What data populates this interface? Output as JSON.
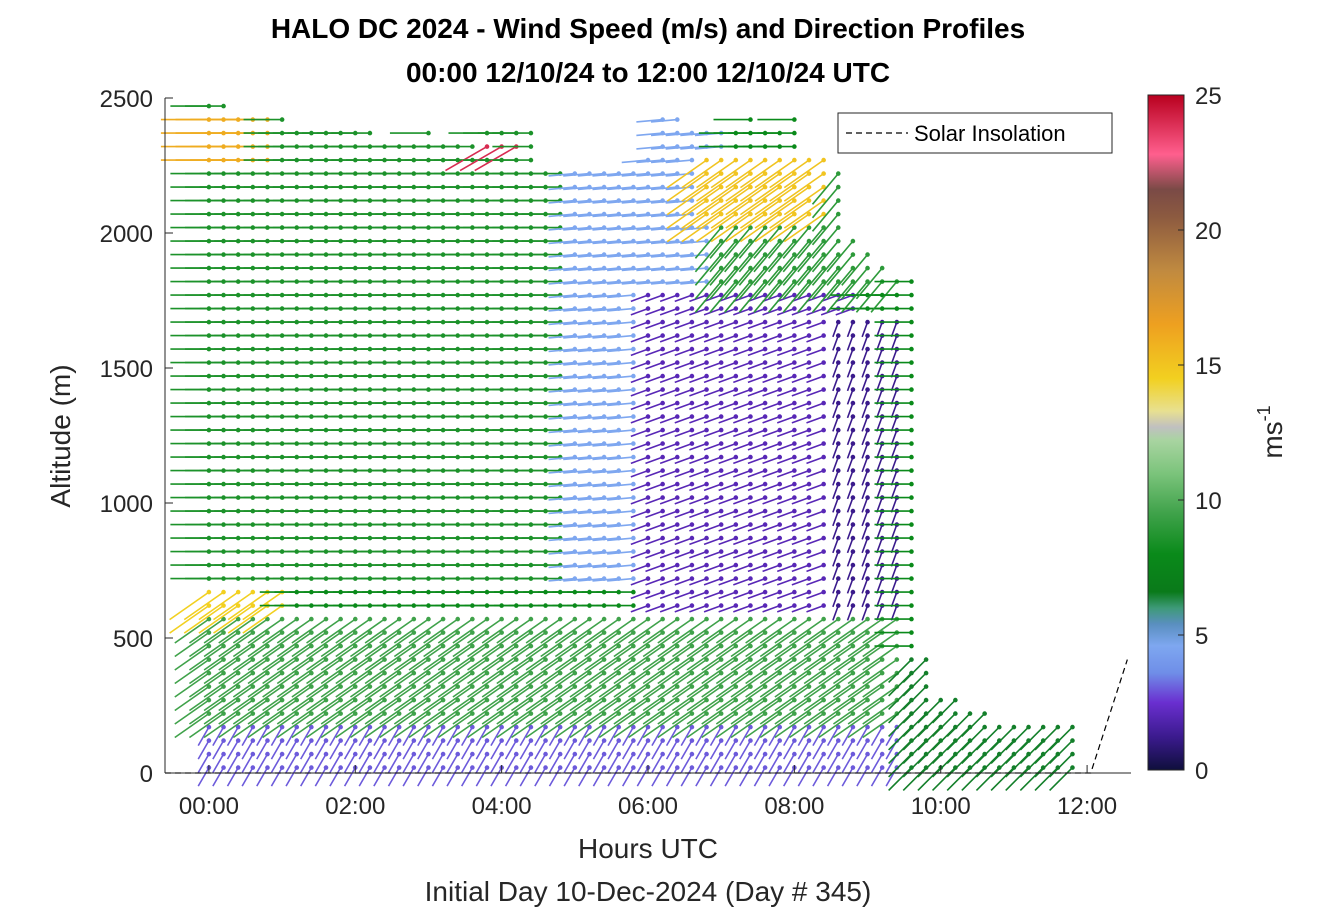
{
  "chart_data": {
    "type": "wind-barb profile (quiver)",
    "title": "HALO DC 2024 - Wind Speed (m/s) and Direction Profiles",
    "subtitle": "00:00 12/10/24 to 12:00 12/10/24  UTC",
    "xlabel": "Hours UTC",
    "xlabel2": "Initial Day 10-Dec-2024 (Day # 345)",
    "ylabel": "Altitude (m)",
    "colorbar_label": "ms",
    "colorbar_label_exp": "-1",
    "x_ticks": [
      "00:00",
      "02:00",
      "04:00",
      "06:00",
      "08:00",
      "10:00",
      "12:00"
    ],
    "x_tick_hours": [
      0,
      2,
      4,
      6,
      8,
      10,
      12
    ],
    "xlim_hours": [
      -0.6,
      12.6
    ],
    "y_ticks": [
      "0",
      "500",
      "1000",
      "1500",
      "2000",
      "2500"
    ],
    "y_tick_values": [
      0,
      500,
      1000,
      1500,
      2000,
      2500
    ],
    "ylim": [
      0,
      2500
    ],
    "colorbar_ticks": [
      "0",
      "5",
      "10",
      "15",
      "20",
      "25"
    ],
    "colorbar_tick_values": [
      0,
      5,
      10,
      15,
      20,
      25
    ],
    "colorbar_range": [
      0,
      25
    ],
    "colormap": [
      [
        0,
        "#0f0f3c"
      ],
      [
        1.2,
        "#3a1a8c"
      ],
      [
        2.5,
        "#6a2fd0"
      ],
      [
        3.6,
        "#6f8ee8"
      ],
      [
        4.6,
        "#7ea7f0"
      ],
      [
        5.4,
        "#5a8fc0"
      ],
      [
        6.0,
        "#3e9a78"
      ],
      [
        6.6,
        "#0a7a1a"
      ],
      [
        8.0,
        "#0a8a1a"
      ],
      [
        9.5,
        "#3fa24a"
      ],
      [
        11.0,
        "#7cc47c"
      ],
      [
        12.2,
        "#a8d4a0"
      ],
      [
        12.7,
        "#c0c0c0"
      ],
      [
        13.3,
        "#e8e090"
      ],
      [
        14.5,
        "#f2d020"
      ],
      [
        16.5,
        "#eea020"
      ],
      [
        18.5,
        "#c08a40"
      ],
      [
        20.5,
        "#8c5a40"
      ],
      [
        21.5,
        "#7a4a46"
      ],
      [
        22.8,
        "#ff5f8e"
      ],
      [
        25,
        "#b8001e"
      ]
    ],
    "legend": {
      "label": "Solar Insolation",
      "position": "top-right",
      "line_style": "dashed"
    },
    "solar_insolation": {
      "hours": [
        -0.6,
        12.05,
        12.55
      ],
      "altitude_m": [
        0,
        0,
        420
      ]
    },
    "profile_hours": [
      0.0,
      0.2,
      0.4,
      0.6,
      0.8,
      1.0,
      1.2,
      1.4,
      1.6,
      1.8,
      2.0,
      2.2,
      2.4,
      2.6,
      2.8,
      3.0,
      3.2,
      3.4,
      3.6,
      3.8,
      4.0,
      4.2,
      4.4,
      4.6,
      4.8,
      5.0,
      5.2,
      5.4,
      5.6,
      5.8,
      6.0,
      6.2,
      6.4,
      6.6,
      6.8,
      7.0,
      7.2,
      7.4,
      7.6,
      7.8,
      8.0,
      8.2,
      8.4,
      8.6,
      8.8,
      9.0,
      9.2,
      9.4,
      9.6,
      9.8,
      10.0,
      10.2,
      10.4,
      10.6,
      10.8,
      11.0,
      11.2,
      11.4,
      11.6,
      11.8
    ],
    "profile_top_m": [
      2500,
      2500,
      2450,
      2450,
      2450,
      2420,
      2400,
      2380,
      2400,
      2380,
      2400,
      2370,
      2360,
      2360,
      2360,
      2380,
      2360,
      2360,
      2360,
      2370,
      2380,
      2400,
      2400,
      2230,
      2230,
      2230,
      2230,
      2230,
      2230,
      2240,
      2270,
      2450,
      2420,
      2400,
      2380,
      2390,
      2400,
      2440,
      2400,
      2410,
      2420,
      2300,
      2280,
      2260,
      2000,
      1950,
      1900,
      1850,
      1830,
      420,
      290,
      270,
      250,
      230,
      200,
      190,
      200,
      200,
      200,
      180
    ],
    "profile_bottom_m": 20,
    "level_spacing_m": 50,
    "wind_regimes": [
      {
        "hours": [
          0.0,
          5.0
        ],
        "alt_m": [
          700,
          2500
        ],
        "speed": 8.5,
        "dir_deg": 270
      },
      {
        "hours": [
          5.0,
          7.0
        ],
        "alt_m": [
          700,
          2500
        ],
        "speed": 4.6,
        "dir_deg": 265
      },
      {
        "hours": [
          6.0,
          8.8
        ],
        "alt_m": [
          250,
          1800
        ],
        "speed": 2.0,
        "dir_deg": 250
      },
      {
        "hours": [
          7.0,
          9.4
        ],
        "alt_m": [
          1800,
          2300
        ],
        "speed": 9.0,
        "dir_deg": 220
      },
      {
        "hours": [
          8.6,
          9.4
        ],
        "alt_m": [
          300,
          1700
        ],
        "speed": 1.2,
        "dir_deg": 200
      },
      {
        "hours": [
          0.0,
          1.0
        ],
        "alt_m": [
          420,
          680
        ],
        "speed": 14.5,
        "dir_deg": 235
      },
      {
        "hours": [
          0.0,
          9.4
        ],
        "alt_m": [
          200,
          600
        ],
        "speed": 9.5,
        "dir_deg": 235
      },
      {
        "hours": [
          0.0,
          12.0
        ],
        "alt_m": [
          0,
          200
        ],
        "speed": 3.0,
        "dir_deg": 210
      },
      {
        "hours": [
          9.6,
          12.0
        ],
        "alt_m": [
          0,
          420
        ],
        "speed": 6.5,
        "dir_deg": 225
      },
      {
        "hours": [
          0.0,
          0.8
        ],
        "alt_m": [
          2250,
          2450
        ],
        "speed": 16.0,
        "dir_deg": 270
      },
      {
        "hours": [
          6.8,
          8.4
        ],
        "alt_m": [
          2050,
          2300
        ],
        "speed": 15.0,
        "dir_deg": 235
      },
      {
        "hours": [
          3.8,
          4.2
        ],
        "alt_m": [
          2280,
          2340
        ],
        "speed": 24.0,
        "dir_deg": 240
      }
    ]
  }
}
